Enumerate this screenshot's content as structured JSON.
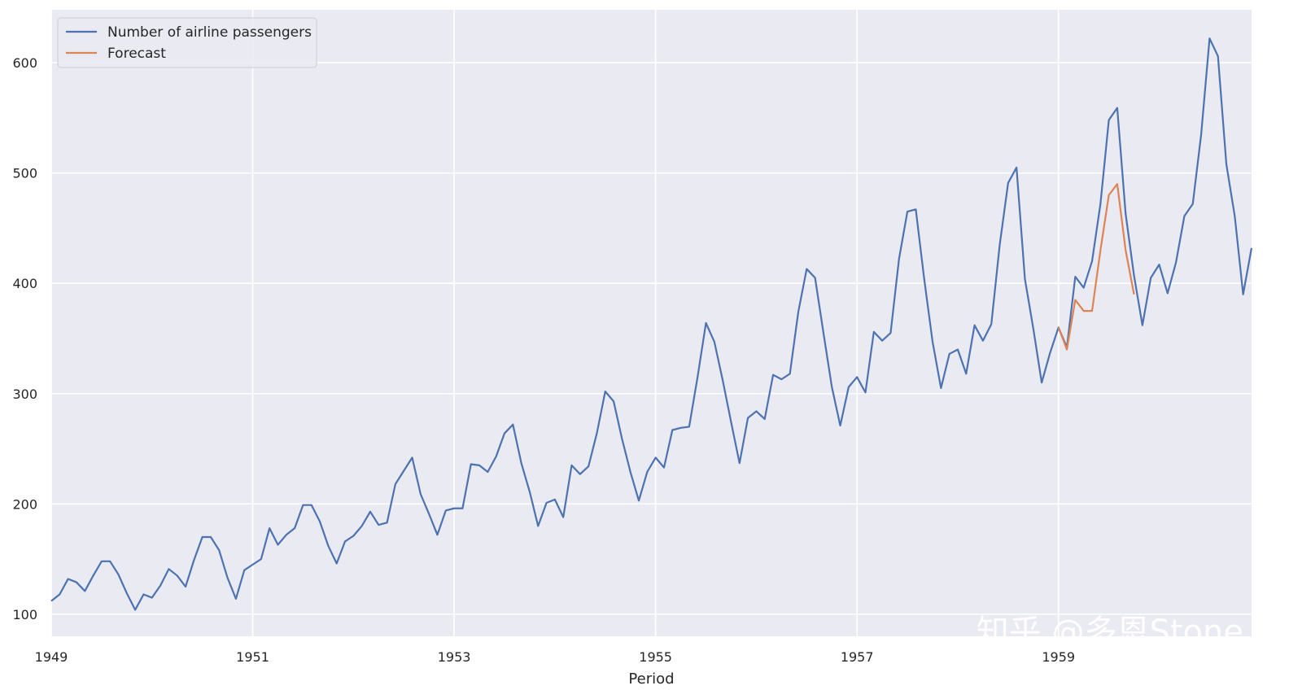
{
  "chart_data": {
    "type": "line",
    "title": "",
    "xlabel": "Period",
    "ylabel": "",
    "x_start_year": 1949,
    "xlim": [
      1949,
      1960.917
    ],
    "ylim": [
      80,
      648
    ],
    "grid": true,
    "legend_location": "upper-left",
    "x_ticks": [
      {
        "value": 1949,
        "label": "1949"
      },
      {
        "value": 1951,
        "label": "1951"
      },
      {
        "value": 1953,
        "label": "1953"
      },
      {
        "value": 1955,
        "label": "1955"
      },
      {
        "value": 1957,
        "label": "1957"
      },
      {
        "value": 1959,
        "label": "1959"
      }
    ],
    "y_ticks": [
      {
        "value": 100,
        "label": "100"
      },
      {
        "value": 200,
        "label": "200"
      },
      {
        "value": 300,
        "label": "300"
      },
      {
        "value": 400,
        "label": "400"
      },
      {
        "value": 500,
        "label": "500"
      },
      {
        "value": 600,
        "label": "600"
      }
    ],
    "series": [
      {
        "name": "Number of airline passengers",
        "color": "#4c72b0",
        "start": 1949,
        "step": 0.08333333,
        "values": [
          112,
          118,
          132,
          129,
          121,
          135,
          148,
          148,
          136,
          119,
          104,
          118,
          115,
          126,
          141,
          135,
          125,
          149,
          170,
          170,
          158,
          133,
          114,
          140,
          145,
          150,
          178,
          163,
          172,
          178,
          199,
          199,
          184,
          162,
          146,
          166,
          171,
          180,
          193,
          181,
          183,
          218,
          230,
          242,
          209,
          191,
          172,
          194,
          196,
          196,
          236,
          235,
          229,
          243,
          264,
          272,
          237,
          211,
          180,
          201,
          204,
          188,
          235,
          227,
          234,
          264,
          302,
          293,
          259,
          229,
          203,
          229,
          242,
          233,
          267,
          269,
          270,
          315,
          364,
          347,
          312,
          274,
          237,
          278,
          284,
          277,
          317,
          313,
          318,
          374,
          413,
          405,
          355,
          306,
          271,
          306,
          315,
          301,
          356,
          348,
          355,
          422,
          465,
          467,
          404,
          347,
          305,
          336,
          340,
          318,
          362,
          348,
          363,
          435,
          491,
          505,
          404,
          359,
          310,
          337,
          360,
          342,
          406,
          396,
          420,
          472,
          548,
          559,
          463,
          407,
          362,
          405,
          417,
          391,
          419,
          461,
          472,
          535,
          622,
          606,
          508,
          461,
          390,
          432
        ]
      },
      {
        "name": "Forecast",
        "color": "#dd8452",
        "start": 1959,
        "step": 0.08333333,
        "values": [
          360,
          340,
          385,
          375,
          375,
          430,
          480,
          490,
          430,
          390
        ]
      }
    ]
  },
  "colors": {
    "axes_background": "#eaeaf2",
    "grid": "#ffffff",
    "legend_background": "#eaeaf2",
    "legend_border": "#cccccc"
  },
  "watermark": "知乎 @多恩Stone"
}
